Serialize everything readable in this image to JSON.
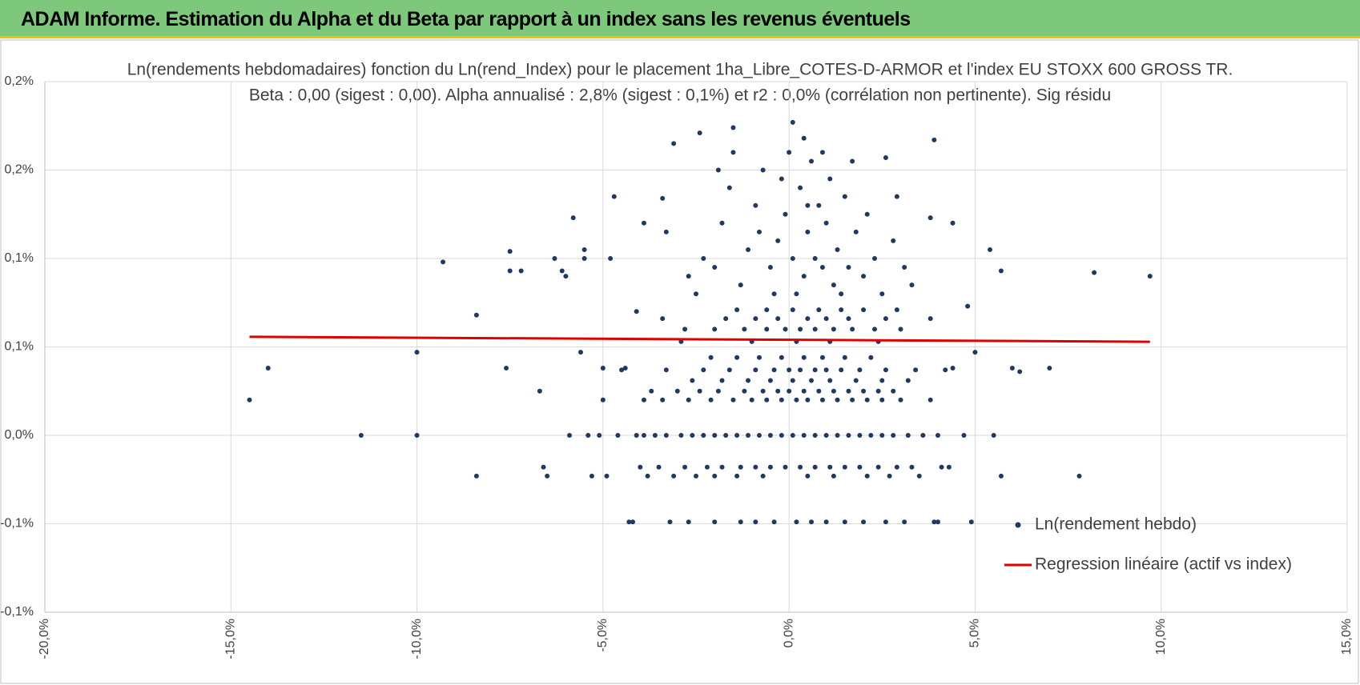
{
  "header": {
    "title": "ADAM Informe. Estimation du Alpha et du Beta par rapport à un index sans les revenus éventuels"
  },
  "chart_data": {
    "type": "scatter",
    "title": "Ln(rendements hebdomadaires) fonction du Ln(rend_Index) pour le placement 1ha_Libre_COTES-D-ARMOR et l'index EU STOXX 600 GROSS TR.",
    "subtitle": "Beta : 0,00 (sigest : 0,00). Alpha annualisé : 2,8% (sigest : 0,1%) et r2 : 0,0% (corrélation non pertinente). Sig résidu",
    "xlim": [
      -20,
      15
    ],
    "xticks": [
      {
        "value": -20,
        "label": "-20,0%"
      },
      {
        "value": -15,
        "label": "-15,0%"
      },
      {
        "value": -10,
        "label": "-10,0%"
      },
      {
        "value": -5,
        "label": "-5,0%"
      },
      {
        "value": 0,
        "label": "0,0%"
      },
      {
        "value": 5,
        "label": "5,0%"
      },
      {
        "value": 10,
        "label": "10,0%"
      },
      {
        "value": 15,
        "label": "15,0%"
      }
    ],
    "ylim": [
      -0.1,
      0.2
    ],
    "yticks": [
      {
        "value": -0.1,
        "label": "-0,1%"
      },
      {
        "value": -0.05,
        "label": "-0,1%"
      },
      {
        "value": 0,
        "label": "0,0%"
      },
      {
        "value": 0.05,
        "label": "0,1%"
      },
      {
        "value": 0.1,
        "label": "0,1%"
      },
      {
        "value": 0.15,
        "label": "0,2%"
      },
      {
        "value": 0.2,
        "label": "0,2%"
      }
    ],
    "grid": true,
    "legend": "lower right",
    "series": [
      {
        "name": "Ln(rendement hebdo)",
        "color": "#203864",
        "x": [
          -14.5,
          -14,
          -11.5,
          -10,
          -10,
          -9.3,
          -8.4,
          -8.4,
          -7.5,
          -7.5,
          -7.2,
          -7.6,
          -6.7,
          -6.6,
          -6.5,
          -6.3,
          -6.1,
          -6.0,
          -5.8,
          -5.6,
          -5.5,
          -5.5,
          -5.0,
          -4.7,
          -4.8,
          -4.4,
          -4.2,
          -4.1,
          -3.9,
          -3.4,
          -3.1,
          -2.4,
          -1.5,
          0.1,
          0.4,
          2.6,
          3.9,
          3.8,
          4.4,
          5.4,
          5.7,
          8.2,
          9.7,
          6,
          6.2,
          7,
          7.8,
          5.7,
          5.5,
          4.9,
          5.0,
          4.8,
          4.7,
          4.3,
          4.4,
          3.9,
          -5.9,
          -5.4,
          -5.1,
          -4.6,
          -4.1,
          -3.9,
          -3.6,
          -3.3,
          -2.9,
          -2.6,
          -2.3,
          -2.0,
          -1.7,
          -1.4,
          -1.1,
          -0.8,
          -0.5,
          -0.2,
          0.1,
          0.4,
          0.7,
          1.0,
          1.3,
          1.6,
          1.9,
          2.2,
          2.5,
          2.8,
          3.2,
          3.6,
          4.0,
          -4.0,
          -3.5,
          -2.8,
          -2.2,
          -1.8,
          -1.3,
          -0.9,
          -0.5,
          -0.1,
          0.3,
          0.7,
          1.1,
          1.5,
          1.9,
          2.4,
          2.9,
          3.3,
          4.1,
          -5.3,
          -4.9,
          -3.8,
          -3.1,
          -2.5,
          -2.0,
          -1.4,
          -0.7,
          0.5,
          1.2,
          2.1,
          2.7,
          3.5,
          -4.3,
          -3.2,
          -2.7,
          -2.0,
          -1.3,
          -0.9,
          -0.4,
          0.2,
          0.6,
          1.0,
          1.5,
          2.0,
          2.6,
          3.1,
          4.0,
          -5.0,
          -3.9,
          -3.4,
          -2.7,
          -2.1,
          -1.5,
          -1.0,
          -0.6,
          -0.2,
          0.2,
          0.5,
          0.9,
          1.3,
          1.7,
          2.1,
          2.5,
          3.0,
          3.8,
          -3.7,
          -3.0,
          -2.4,
          -1.9,
          -1.2,
          -0.7,
          -0.3,
          0.0,
          0.4,
          0.8,
          1.2,
          1.6,
          2.0,
          2.4,
          2.8,
          -2.6,
          -1.8,
          -1.1,
          -0.5,
          0.1,
          0.6,
          1.1,
          1.8,
          2.5,
          3.2,
          -4.5,
          -3.3,
          -2.3,
          -1.6,
          -0.9,
          -0.4,
          0.0,
          0.3,
          0.7,
          1.0,
          1.4,
          1.9,
          2.6,
          3.4,
          4.2,
          -2.1,
          -1.4,
          -0.8,
          -0.2,
          0.4,
          0.9,
          1.5,
          2.2,
          -2.9,
          -1.0,
          0.2,
          1.1,
          2.4,
          -2.8,
          -2.0,
          -1.2,
          -0.6,
          -0.1,
          0.3,
          0.7,
          1.2,
          1.7,
          2.3,
          3.0,
          -3.4,
          -1.7,
          -0.9,
          -0.3,
          0.5,
          1.0,
          1.6,
          2.6,
          3.8,
          -1.4,
          -0.6,
          0.1,
          0.8,
          1.4,
          2.0,
          2.9,
          -2.7,
          -2.3,
          -2,
          -1.8,
          -1.6,
          -1.3,
          -1.1,
          -0.9,
          -0.7,
          -0.5,
          -0.3,
          -0.1,
          0,
          0.1,
          0.3,
          0.4,
          0.5,
          0.6,
          0.7,
          0.8,
          0.9,
          1.0,
          1.1,
          1.2,
          1.3,
          1.5,
          1.6,
          1.8,
          2.0,
          2.1,
          2.3,
          2.5,
          2.8,
          3.1,
          3.3,
          -2.5,
          0.2,
          1.4,
          -0.4,
          -1.5,
          0.9,
          1.7,
          -3.3,
          2.9,
          -0.2,
          0.5,
          -1.9,
          -0.8
        ],
        "values": [
          0.02,
          0.038,
          0,
          0,
          0.047,
          0.098,
          0.068,
          -0.023,
          0.104,
          0.093,
          0.093,
          0.038,
          0.025,
          -0.018,
          -0.023,
          0.1,
          0.093,
          0.09,
          0.123,
          0.047,
          0.1,
          0.105,
          0.038,
          0.135,
          0.1,
          0.038,
          -0.049,
          0.07,
          0.12,
          0.134,
          0.165,
          0.171,
          0.174,
          0.177,
          0.168,
          0.157,
          0.167,
          0.123,
          0.12,
          0.105,
          0.093,
          0.092,
          0.09,
          0.038,
          0.036,
          0.038,
          -0.023,
          -0.023,
          0,
          -0.049,
          0.047,
          0.073,
          0,
          -0.018,
          0.038,
          -0.049,
          0,
          0,
          0,
          0,
          0,
          0,
          0,
          0,
          0,
          0,
          0,
          0,
          0,
          0,
          0,
          0,
          0,
          0,
          0,
          0,
          0,
          0,
          0,
          0,
          0,
          0,
          0,
          0,
          0,
          0,
          0,
          -0.018,
          -0.018,
          -0.018,
          -0.018,
          -0.018,
          -0.018,
          -0.018,
          -0.018,
          -0.018,
          -0.018,
          -0.018,
          -0.018,
          -0.018,
          -0.018,
          -0.018,
          -0.018,
          -0.018,
          -0.018,
          -0.023,
          -0.023,
          -0.023,
          -0.023,
          -0.023,
          -0.023,
          -0.023,
          -0.023,
          -0.023,
          -0.023,
          -0.023,
          -0.023,
          -0.023,
          -0.049,
          -0.049,
          -0.049,
          -0.049,
          -0.049,
          -0.049,
          -0.049,
          -0.049,
          -0.049,
          -0.049,
          -0.049,
          -0.049,
          -0.049,
          -0.049,
          -0.049,
          0.02,
          0.02,
          0.02,
          0.02,
          0.02,
          0.02,
          0.02,
          0.02,
          0.02,
          0.02,
          0.02,
          0.02,
          0.02,
          0.02,
          0.02,
          0.02,
          0.02,
          0.02,
          0.025,
          0.025,
          0.025,
          0.025,
          0.025,
          0.025,
          0.025,
          0.025,
          0.025,
          0.025,
          0.025,
          0.025,
          0.025,
          0.025,
          0.025,
          0.031,
          0.031,
          0.031,
          0.031,
          0.031,
          0.031,
          0.031,
          0.031,
          0.031,
          0.031,
          0.037,
          0.037,
          0.037,
          0.037,
          0.037,
          0.037,
          0.037,
          0.037,
          0.037,
          0.037,
          0.037,
          0.037,
          0.037,
          0.037,
          0.037,
          0.044,
          0.044,
          0.044,
          0.044,
          0.044,
          0.044,
          0.044,
          0.044,
          0.053,
          0.053,
          0.053,
          0.053,
          0.053,
          0.06,
          0.06,
          0.06,
          0.06,
          0.06,
          0.06,
          0.06,
          0.06,
          0.06,
          0.06,
          0.06,
          0.066,
          0.066,
          0.066,
          0.066,
          0.066,
          0.066,
          0.066,
          0.066,
          0.066,
          0.071,
          0.071,
          0.071,
          0.071,
          0.071,
          0.071,
          0.071,
          0.09,
          0.1,
          0.095,
          0.12,
          0.14,
          0.085,
          0.105,
          0.13,
          0.15,
          0.095,
          0.11,
          0.125,
          0.16,
          0.1,
          0.14,
          0.09,
          0.115,
          0.155,
          0.1,
          0.13,
          0.095,
          0.12,
          0.145,
          0.085,
          0.105,
          0.135,
          0.095,
          0.115,
          0.09,
          0.125,
          0.1,
          0.08,
          0.11,
          0.095,
          0.085,
          0.08,
          0.08,
          0.08,
          0.08,
          0.16,
          0.16,
          0.155,
          0.115,
          0.135,
          0.145,
          0.13,
          0.15,
          0.115
        ]
      },
      {
        "name": "Regression linéaire (actif vs index)",
        "type": "line",
        "color": "#e00000",
        "x": [
          -14.5,
          9.7
        ],
        "values": [
          0.0557,
          0.0529
        ]
      }
    ]
  }
}
